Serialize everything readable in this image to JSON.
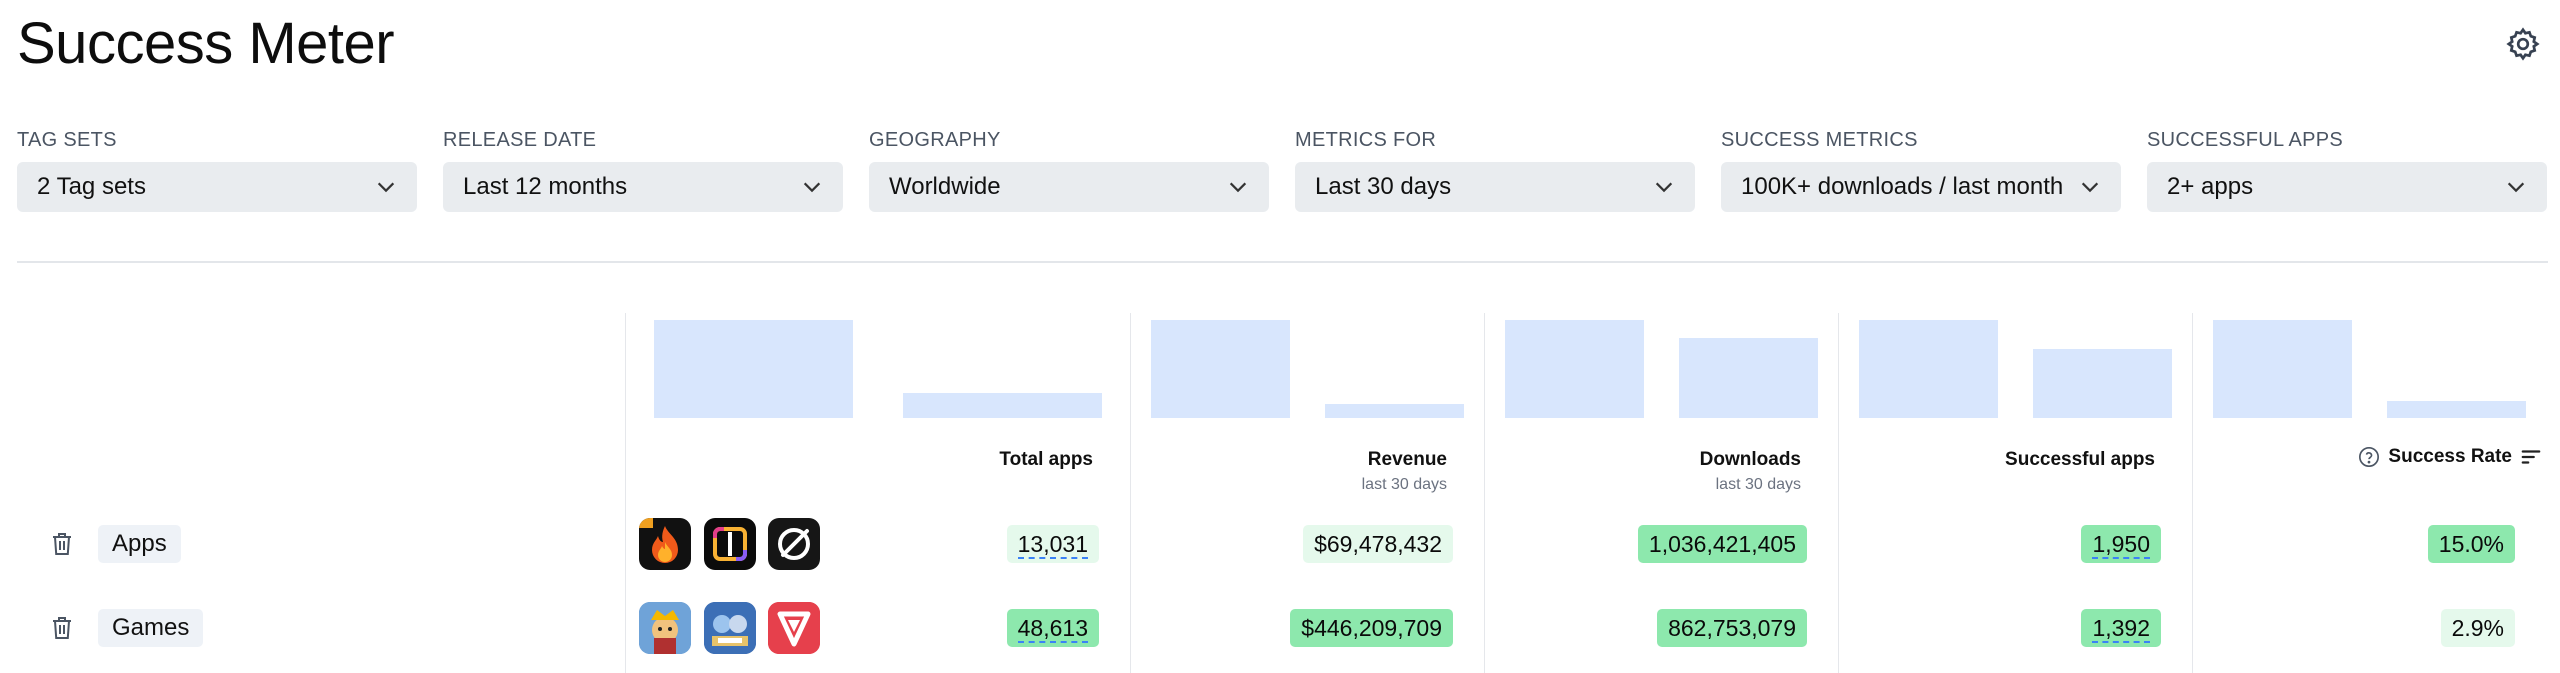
{
  "page": {
    "title": "Success Meter"
  },
  "icons": {
    "settings": "gear-icon",
    "chevron": "chevron-down-icon",
    "delete": "trash-icon",
    "help": "help-circle-icon",
    "sort": "sort-icon"
  },
  "filters": [
    {
      "label": "TAG SETS",
      "value": "2 Tag sets"
    },
    {
      "label": "RELEASE DATE",
      "value": "Last 12 months"
    },
    {
      "label": "GEOGRAPHY",
      "value": "Worldwide"
    },
    {
      "label": "METRICS FOR",
      "value": "Last 30 days"
    },
    {
      "label": "SUCCESS METRICS",
      "value": "100K+ downloads / last month"
    },
    {
      "label": "SUCCESSFUL APPS",
      "value": "2+ apps"
    }
  ],
  "columns": {
    "total_apps": {
      "label": "Total apps"
    },
    "revenue": {
      "label": "Revenue",
      "sub": "last 30 days"
    },
    "downloads": {
      "label": "Downloads",
      "sub": "last 30 days"
    },
    "successful_apps": {
      "label": "Successful apps"
    },
    "success_rate": {
      "label": "Success Rate"
    }
  },
  "rows": [
    {
      "label": "Apps",
      "total_apps": "13,031",
      "revenue": "$69,478,432",
      "downloads": "1,036,421,405",
      "successful_apps": "1,950",
      "success_rate": "15.0%"
    },
    {
      "label": "Games",
      "total_apps": "48,613",
      "revenue": "$446,209,709",
      "downloads": "862,753,079",
      "successful_apps": "1,392",
      "success_rate": "2.9%"
    }
  ],
  "colors": {
    "bar": "#d8e6fd",
    "pill_strong": "#8de8ad",
    "pill_light": "#e5f9ec",
    "select_bg": "#e9ecef"
  }
}
